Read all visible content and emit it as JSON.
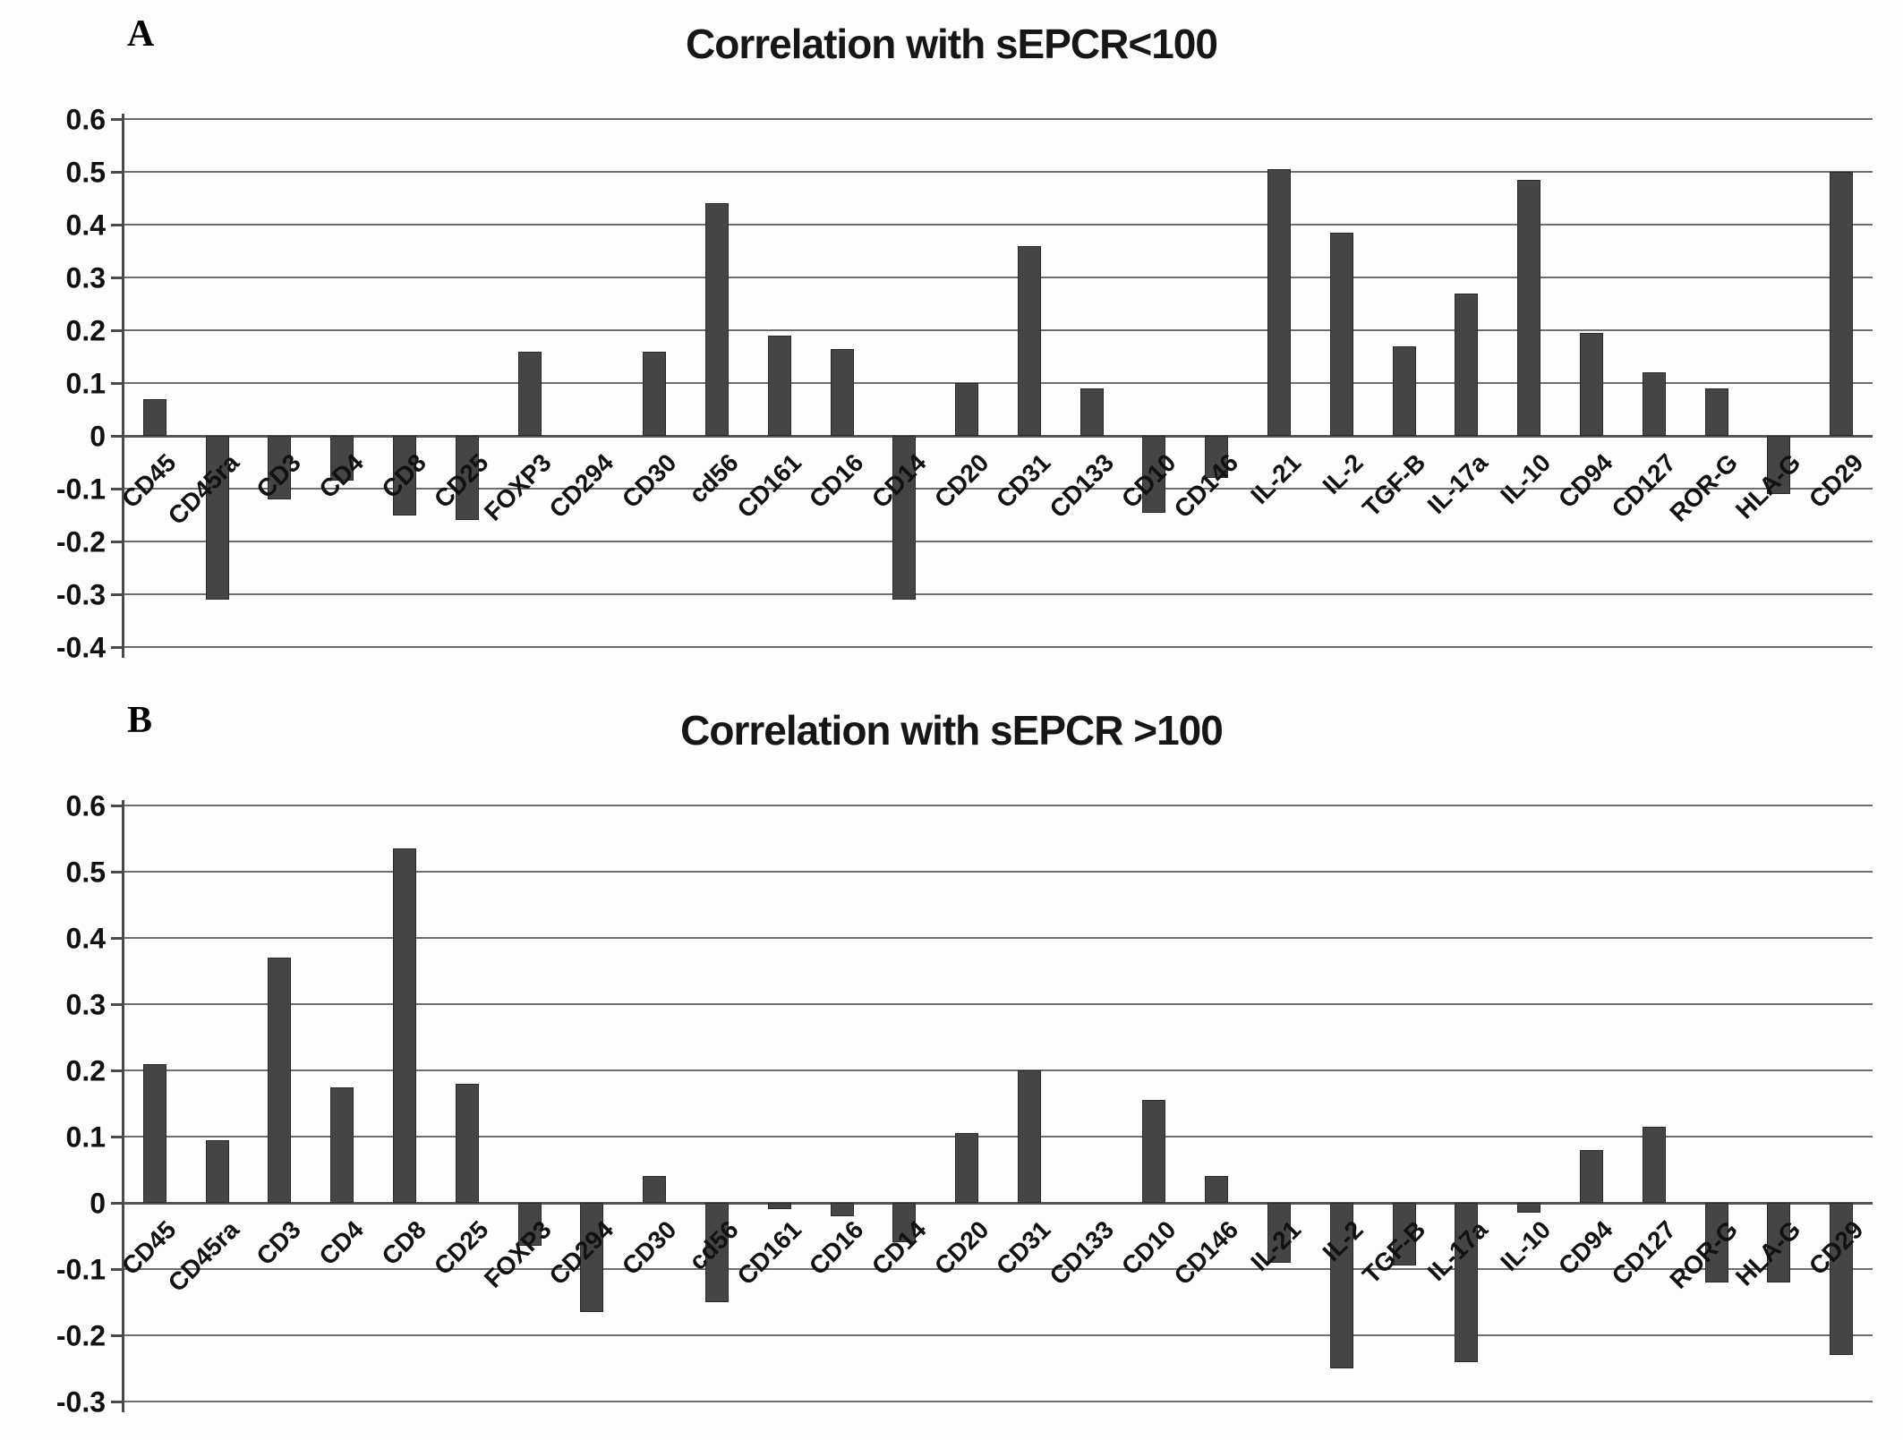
{
  "figure": {
    "background": "#fdfdfd",
    "text_color": "#161616"
  },
  "chart_data": [
    {
      "type": "bar",
      "panel_label": "A",
      "title": "Correlation with sEPCR<100",
      "categories": [
        "CD45",
        "CD45ra",
        "CD3",
        "CD4",
        "CD8",
        "CD25",
        "FOXP3",
        "CD294",
        "CD30",
        "cd56",
        "CD161",
        "CD16",
        "CD14",
        "CD20",
        "CD31",
        "CD133",
        "CD10",
        "CD146",
        "IL-21",
        "IL-2",
        "TGF-B",
        "IL-17a",
        "IL-10",
        "CD94",
        "CD127",
        "ROR-G",
        "HLA-G",
        "CD29"
      ],
      "values": [
        0.07,
        -0.31,
        -0.12,
        -0.085,
        -0.15,
        -0.16,
        0.16,
        0,
        0.16,
        0.44,
        0.19,
        0.165,
        -0.31,
        0.1,
        0.36,
        0.09,
        -0.145,
        -0.08,
        0.505,
        0.385,
        0.17,
        0.27,
        0.485,
        0.195,
        0.12,
        0.09,
        -0.11,
        0.5
      ],
      "xlabel": "",
      "ylabel": "",
      "ylim": [
        -0.4,
        0.6
      ],
      "ytick_step": 0.1,
      "yticks": [
        "0.6",
        "0.5",
        "0.4",
        "0.3",
        "0.2",
        "0.1",
        "0",
        "-0.1",
        "-0.2",
        "-0.3",
        "-0.4"
      ],
      "grid": true,
      "legend": "none",
      "bar_color": "#454545",
      "bar_border_color": "#2b2b2b",
      "gridline_color": "#6f6f6f",
      "axis_color": "#4a4a4a"
    },
    {
      "type": "bar",
      "panel_label": "B",
      "title": "Correlation with sEPCR >100",
      "categories": [
        "CD45",
        "CD45ra",
        "CD3",
        "CD4",
        "CD8",
        "CD25",
        "FOXP3",
        "CD294",
        "CD30",
        "cd56",
        "CD161",
        "CD16",
        "CD14",
        "CD20",
        "CD31",
        "CD133",
        "CD10",
        "CD146",
        "IL-21",
        "IL-2",
        "TGF-B",
        "IL-17a",
        "IL-10",
        "CD94",
        "CD127",
        "ROR-G",
        "HLA-G",
        "CD29"
      ],
      "values": [
        0.21,
        0.095,
        0.37,
        0.175,
        0.535,
        0.18,
        -0.065,
        -0.165,
        0.04,
        -0.15,
        -0.01,
        -0.02,
        -0.06,
        0.105,
        0.2,
        0,
        0.155,
        0.04,
        -0.09,
        -0.25,
        -0.095,
        -0.24,
        -0.015,
        0.08,
        0.115,
        -0.12,
        -0.12,
        -0.23
      ],
      "xlabel": "",
      "ylabel": "",
      "ylim": [
        -0.3,
        0.6
      ],
      "ytick_step": 0.1,
      "yticks": [
        "0.6",
        "0.5",
        "0.4",
        "0.3",
        "0.2",
        "0.1",
        "0",
        "-0.1",
        "-0.2",
        "-0.3"
      ],
      "grid": true,
      "legend": "none",
      "bar_color": "#454545",
      "bar_border_color": "#2b2b2b",
      "gridline_color": "#6f6f6f",
      "axis_color": "#4a4a4a"
    }
  ]
}
